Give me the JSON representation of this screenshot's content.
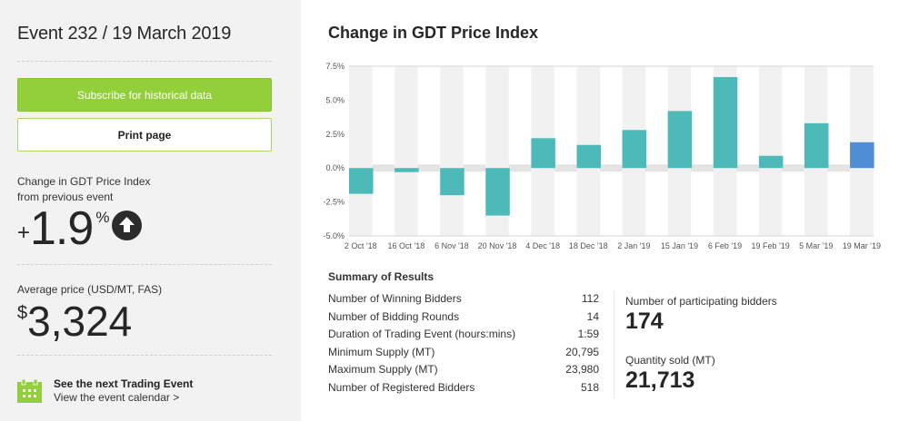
{
  "sidebar": {
    "event_title": "Event 232 / 19 March 2019",
    "subscribe_label": "Subscribe for historical data",
    "print_label": "Print page",
    "change_label_line1": "Change in GDT Price Index",
    "change_label_line2": "from previous event",
    "change_sign": "+",
    "change_value": "1.9",
    "change_unit": "%",
    "change_direction_icon": "arrow-up-icon",
    "avg_price_label": "Average price (USD/MT, FAS)",
    "avg_price_currency": "$",
    "avg_price_value": "3,324",
    "next_event_title": "See the next Trading Event",
    "next_event_link": "View the event calendar >",
    "calendar_icon": "calendar-icon"
  },
  "main": {
    "title": "Change in GDT Price Index",
    "summary_title": "Summary of Results",
    "summary_rows": [
      {
        "label": "Number of Winning Bidders",
        "value": "112"
      },
      {
        "label": "Number of Bidding Rounds",
        "value": "14"
      },
      {
        "label": "Duration of Trading Event (hours:mins)",
        "value": "1:59"
      },
      {
        "label": "Minimum Supply (MT)",
        "value": "20,795"
      },
      {
        "label": "Maximum Supply (MT)",
        "value": "23,980"
      },
      {
        "label": "Number of Registered Bidders",
        "value": "518"
      }
    ],
    "participating_label": "Number of participating bidders",
    "participating_value": "174",
    "quantity_label": "Quantity sold (MT)",
    "quantity_value": "21,713"
  },
  "colors": {
    "accent_green": "#93cf3a",
    "bar_teal": "#4dbab9",
    "bar_current": "#4f8ed4",
    "band_grey": "#f1f1f1",
    "zero_band": "#e4e4e4"
  },
  "chart_data": {
    "type": "bar",
    "title": "Change in GDT Price Index",
    "xlabel": "",
    "ylabel": "",
    "ylim": [
      -5.0,
      7.5
    ],
    "yticks": [
      "7.5%",
      "5.0%",
      "2.5%",
      "0.0%",
      "-2.5%",
      "-5.0%"
    ],
    "ytick_values": [
      7.5,
      5.0,
      2.5,
      0.0,
      -2.5,
      -5.0
    ],
    "categories": [
      "2 Oct '18",
      "16 Oct '18",
      "6 Nov '18",
      "20 Nov '18",
      "4 Dec '18",
      "18 Dec '18",
      "2 Jan '19",
      "15 Jan '19",
      "6 Feb '19",
      "19 Feb '19",
      "5 Mar '19",
      "19 Mar '19"
    ],
    "values": [
      -1.9,
      -0.3,
      -2.0,
      -3.5,
      2.2,
      1.7,
      2.8,
      4.2,
      6.7,
      0.9,
      3.3,
      1.9
    ],
    "highlight_index": 11
  }
}
